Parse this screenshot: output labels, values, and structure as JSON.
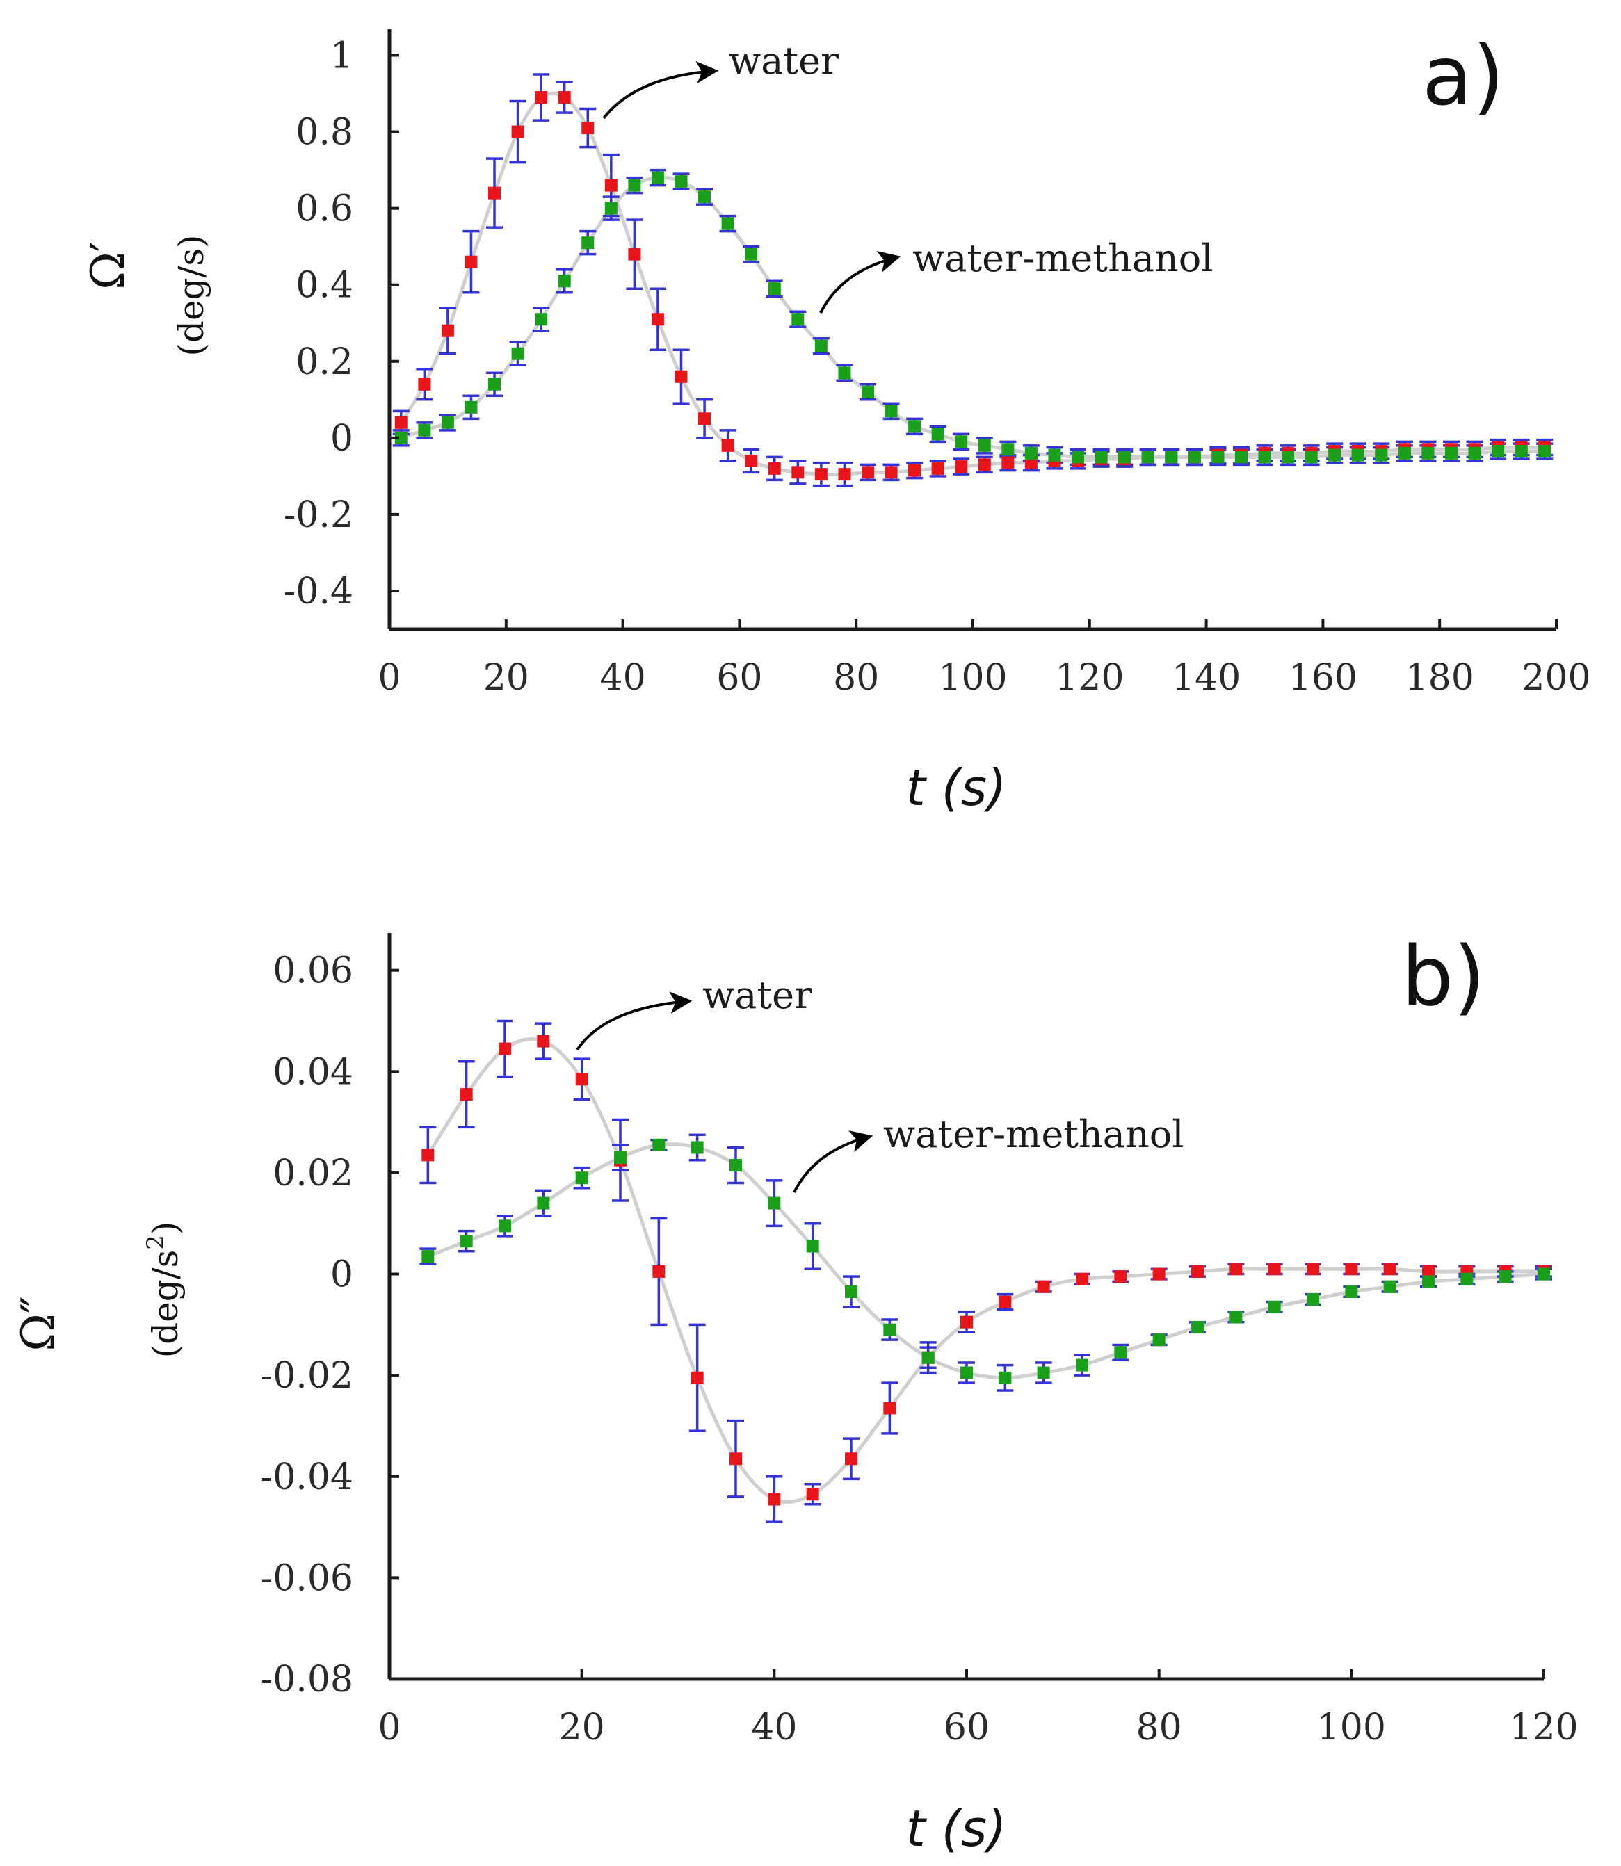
{
  "chart_data": [
    {
      "type": "scatter",
      "panel_label": "a)",
      "xlabel": "t (s)",
      "ylabel_symbol": "Ω′",
      "ylabel_unit": "(deg/s)",
      "xlim": [
        0,
        200
      ],
      "ylim": [
        -0.5,
        1.05
      ],
      "xticks": [
        0,
        20,
        40,
        60,
        80,
        100,
        120,
        140,
        160,
        180,
        200
      ],
      "yticks": [
        -0.4,
        -0.2,
        0,
        0.2,
        0.4,
        0.6,
        0.8,
        1
      ],
      "ytick_labels": [
        "-0.4",
        "-0.2",
        "0",
        "0.2",
        "0.4",
        "0.6",
        "0.8",
        "1"
      ],
      "grid": false,
      "series": [
        {
          "name": "water",
          "color": "#e8161b",
          "x": [
            2,
            6,
            10,
            14,
            18,
            22,
            26,
            30,
            34,
            38,
            42,
            46,
            50,
            54,
            58,
            62,
            66,
            70,
            74,
            78,
            82,
            86,
            90,
            94,
            98,
            102,
            106,
            110,
            114,
            118,
            122,
            126,
            130,
            134,
            138,
            142,
            146,
            150,
            154,
            158,
            162,
            166,
            170,
            174,
            178,
            182,
            186,
            190,
            194,
            198
          ],
          "y": [
            0.04,
            0.14,
            0.28,
            0.46,
            0.64,
            0.8,
            0.89,
            0.89,
            0.81,
            0.66,
            0.48,
            0.31,
            0.16,
            0.05,
            -0.02,
            -0.06,
            -0.08,
            -0.09,
            -0.095,
            -0.095,
            -0.09,
            -0.09,
            -0.085,
            -0.08,
            -0.075,
            -0.07,
            -0.065,
            -0.065,
            -0.06,
            -0.06,
            -0.055,
            -0.055,
            -0.05,
            -0.05,
            -0.05,
            -0.045,
            -0.045,
            -0.04,
            -0.04,
            -0.04,
            -0.035,
            -0.035,
            -0.035,
            -0.03,
            -0.03,
            -0.03,
            -0.03,
            -0.025,
            -0.025,
            -0.025
          ],
          "yerr": [
            0.03,
            0.04,
            0.06,
            0.08,
            0.09,
            0.08,
            0.06,
            0.04,
            0.05,
            0.08,
            0.09,
            0.08,
            0.07,
            0.05,
            0.04,
            0.03,
            0.03,
            0.03,
            0.03,
            0.03,
            0.02,
            0.02,
            0.02,
            0.02,
            0.02,
            0.02,
            0.02,
            0.02,
            0.02,
            0.02,
            0.02,
            0.02,
            0.02,
            0.02,
            0.02,
            0.02,
            0.02,
            0.02,
            0.02,
            0.02,
            0.02,
            0.02,
            0.02,
            0.02,
            0.02,
            0.02,
            0.02,
            0.02,
            0.02,
            0.02
          ]
        },
        {
          "name": "water-methanol",
          "color": "#1aa01a",
          "x": [
            2,
            6,
            10,
            14,
            18,
            22,
            26,
            30,
            34,
            38,
            42,
            46,
            50,
            54,
            58,
            62,
            66,
            70,
            74,
            78,
            82,
            86,
            90,
            94,
            98,
            102,
            106,
            110,
            114,
            118,
            122,
            126,
            130,
            134,
            138,
            142,
            146,
            150,
            154,
            158,
            162,
            166,
            170,
            174,
            178,
            182,
            186,
            190,
            194,
            198
          ],
          "y": [
            0.0,
            0.02,
            0.04,
            0.08,
            0.14,
            0.22,
            0.31,
            0.41,
            0.51,
            0.6,
            0.66,
            0.68,
            0.67,
            0.63,
            0.56,
            0.48,
            0.39,
            0.31,
            0.24,
            0.17,
            0.12,
            0.07,
            0.03,
            0.01,
            -0.01,
            -0.02,
            -0.03,
            -0.04,
            -0.045,
            -0.05,
            -0.05,
            -0.05,
            -0.05,
            -0.05,
            -0.05,
            -0.05,
            -0.05,
            -0.05,
            -0.05,
            -0.05,
            -0.045,
            -0.045,
            -0.045,
            -0.04,
            -0.04,
            -0.04,
            -0.04,
            -0.035,
            -0.035,
            -0.035
          ],
          "yerr": [
            0.02,
            0.02,
            0.02,
            0.03,
            0.03,
            0.03,
            0.03,
            0.03,
            0.03,
            0.03,
            0.02,
            0.02,
            0.02,
            0.02,
            0.02,
            0.02,
            0.02,
            0.02,
            0.02,
            0.02,
            0.02,
            0.02,
            0.02,
            0.02,
            0.02,
            0.02,
            0.02,
            0.02,
            0.02,
            0.02,
            0.02,
            0.02,
            0.02,
            0.02,
            0.02,
            0.02,
            0.02,
            0.02,
            0.02,
            0.02,
            0.02,
            0.02,
            0.02,
            0.02,
            0.02,
            0.02,
            0.02,
            0.02,
            0.02,
            0.02
          ]
        }
      ],
      "annotations": [
        {
          "text": "water",
          "series": "water"
        },
        {
          "text": "water-methanol",
          "series": "water-methanol"
        }
      ]
    },
    {
      "type": "scatter",
      "panel_label": "b)",
      "xlabel": "t (s)",
      "ylabel_symbol": "Ω″",
      "ylabel_unit_base": "(deg/s",
      "ylabel_unit_sup": "2",
      "ylabel_unit_end": ")",
      "xlim": [
        0,
        120
      ],
      "ylim": [
        -0.08,
        0.066
      ],
      "xticks": [
        0,
        20,
        40,
        60,
        80,
        100,
        120
      ],
      "yticks": [
        -0.08,
        -0.06,
        -0.04,
        -0.02,
        0,
        0.02,
        0.04,
        0.06
      ],
      "ytick_labels": [
        "-0.08",
        "-0.06",
        "-0.04",
        "-0.02",
        "0",
        "0.02",
        "0.04",
        "0.06"
      ],
      "grid": false,
      "series": [
        {
          "name": "water",
          "color": "#e8161b",
          "x": [
            4,
            8,
            12,
            16,
            20,
            24,
            28,
            32,
            36,
            40,
            44,
            48,
            52,
            56,
            60,
            64,
            68,
            72,
            76,
            80,
            84,
            88,
            92,
            96,
            100,
            104,
            108,
            112,
            116,
            120
          ],
          "y": [
            0.0235,
            0.0355,
            0.0445,
            0.046,
            0.0385,
            0.0225,
            0.0005,
            -0.0205,
            -0.0365,
            -0.0445,
            -0.0435,
            -0.0365,
            -0.0265,
            -0.0165,
            -0.0095,
            -0.0055,
            -0.0025,
            -0.001,
            -0.0005,
            0.0,
            0.0005,
            0.001,
            0.001,
            0.001,
            0.001,
            0.001,
            0.0005,
            0.0005,
            0.0005,
            0.0005
          ],
          "yerr": [
            0.0055,
            0.0065,
            0.0055,
            0.0035,
            0.004,
            0.008,
            0.0105,
            0.0105,
            0.0075,
            0.0045,
            0.002,
            0.004,
            0.005,
            0.003,
            0.002,
            0.0015,
            0.001,
            0.001,
            0.001,
            0.001,
            0.001,
            0.001,
            0.001,
            0.001,
            0.001,
            0.001,
            0.001,
            0.001,
            0.001,
            0.001
          ]
        },
        {
          "name": "water-methanol",
          "color": "#1aa01a",
          "x": [
            4,
            8,
            12,
            16,
            20,
            24,
            28,
            32,
            36,
            40,
            44,
            48,
            52,
            56,
            60,
            64,
            68,
            72,
            76,
            80,
            84,
            88,
            92,
            96,
            100,
            104,
            108,
            112,
            116,
            120
          ],
          "y": [
            0.0035,
            0.0065,
            0.0095,
            0.014,
            0.019,
            0.023,
            0.0255,
            0.025,
            0.0215,
            0.014,
            0.0055,
            -0.0035,
            -0.011,
            -0.0165,
            -0.0195,
            -0.0205,
            -0.0195,
            -0.018,
            -0.0155,
            -0.013,
            -0.0105,
            -0.0085,
            -0.0065,
            -0.005,
            -0.0035,
            -0.0025,
            -0.0015,
            -0.001,
            -0.0005,
            0.0
          ],
          "yerr": [
            0.0015,
            0.002,
            0.002,
            0.0025,
            0.002,
            0.0025,
            0.001,
            0.0025,
            0.0035,
            0.0045,
            0.0045,
            0.003,
            0.002,
            0.002,
            0.002,
            0.0025,
            0.002,
            0.002,
            0.0015,
            0.001,
            0.001,
            0.001,
            0.001,
            0.001,
            0.001,
            0.001,
            0.001,
            0.001,
            0.001,
            0.001
          ]
        }
      ],
      "annotations": [
        {
          "text": "water",
          "series": "water"
        },
        {
          "text": "water-methanol",
          "series": "water-methanol"
        }
      ]
    }
  ]
}
